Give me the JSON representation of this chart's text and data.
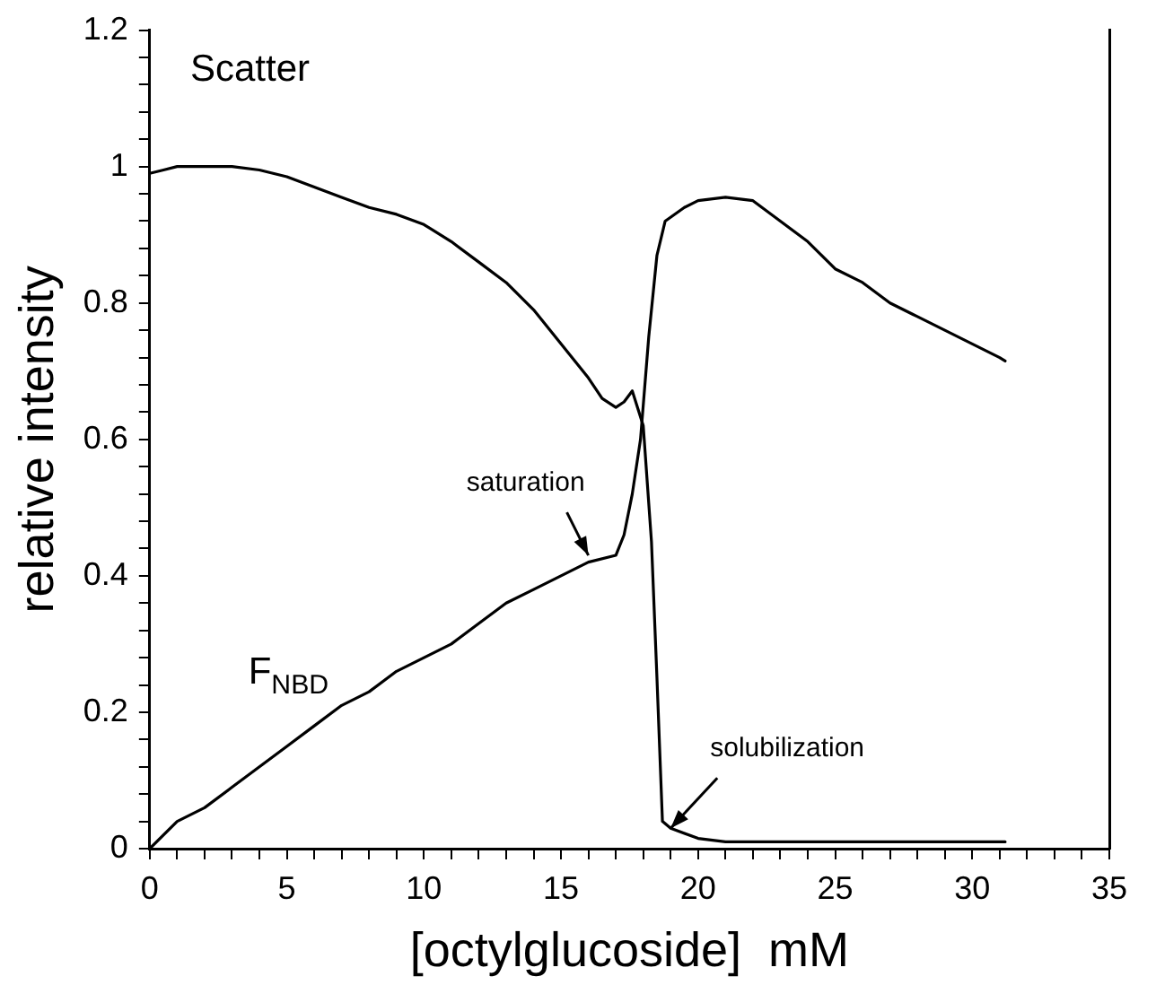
{
  "chart_data": {
    "type": "line",
    "xlabel": "[octylglucoside]  mM",
    "ylabel": "relative intensity",
    "xlim": [
      0,
      35
    ],
    "ylim": [
      0,
      1.2
    ],
    "xticks": [
      0,
      {
        "value": 1,
        "label": null
      },
      {
        "value": 2,
        "label": null
      },
      {
        "value": 3,
        "label": null
      },
      {
        "value": 4,
        "label": null
      },
      5,
      {
        "value": 6,
        "label": null
      },
      {
        "value": 7,
        "label": null
      },
      {
        "value": 8,
        "label": null
      },
      {
        "value": 9,
        "label": null
      },
      10,
      {
        "value": 11,
        "label": null
      },
      {
        "value": 12,
        "label": null
      },
      {
        "value": 13,
        "label": null
      },
      {
        "value": 14,
        "label": null
      },
      15,
      {
        "value": 16,
        "label": null
      },
      {
        "value": 17,
        "label": null
      },
      {
        "value": 18,
        "label": null
      },
      {
        "value": 19,
        "label": null
      },
      20,
      {
        "value": 21,
        "label": null
      },
      {
        "value": 22,
        "label": null
      },
      {
        "value": 23,
        "label": null
      },
      {
        "value": 24,
        "label": null
      },
      25,
      {
        "value": 26,
        "label": null
      },
      {
        "value": 27,
        "label": null
      },
      {
        "value": 28,
        "label": null
      },
      {
        "value": 29,
        "label": null
      },
      30,
      {
        "value": 31,
        "label": null
      },
      {
        "value": 32,
        "label": null
      },
      {
        "value": 33,
        "label": null
      },
      {
        "value": 34,
        "label": null
      },
      35
    ],
    "yticks": [
      0,
      {
        "value": 0.04,
        "label": null
      },
      {
        "value": 0.08,
        "label": null
      },
      {
        "value": 0.12,
        "label": null
      },
      {
        "value": 0.16,
        "label": null
      },
      0.2,
      {
        "value": 0.24,
        "label": null
      },
      {
        "value": 0.28,
        "label": null
      },
      {
        "value": 0.32,
        "label": null
      },
      {
        "value": 0.36,
        "label": null
      },
      0.4,
      {
        "value": 0.44,
        "label": null
      },
      {
        "value": 0.48,
        "label": null
      },
      {
        "value": 0.52,
        "label": null
      },
      {
        "value": 0.56,
        "label": null
      },
      0.6,
      {
        "value": 0.64,
        "label": null
      },
      {
        "value": 0.68,
        "label": null
      },
      {
        "value": 0.72,
        "label": null
      },
      {
        "value": 0.76,
        "label": null
      },
      0.8,
      {
        "value": 0.84,
        "label": null
      },
      {
        "value": 0.88,
        "label": null
      },
      {
        "value": 0.92,
        "label": null
      },
      {
        "value": 0.96,
        "label": null
      },
      1,
      {
        "value": 1.04,
        "label": null
      },
      {
        "value": 1.08,
        "label": null
      },
      {
        "value": 1.12,
        "label": null
      },
      {
        "value": 1.16,
        "label": null
      },
      1.2
    ],
    "grid": false,
    "legend": false,
    "marker": "none",
    "line_style": "solid",
    "series": [
      {
        "name": "Scatter",
        "color": "#000000",
        "x": [
          0,
          0.5,
          1,
          2,
          3,
          4,
          5,
          6,
          7,
          8,
          9,
          10,
          11,
          12,
          13,
          14,
          15,
          16,
          16.5,
          17,
          17.3,
          17.6,
          18,
          18.3,
          18.5,
          18.7,
          19,
          20,
          21,
          25,
          31.2
        ],
        "values": [
          0.99,
          0.995,
          1.0,
          1.0,
          1.0,
          0.995,
          0.985,
          0.97,
          0.955,
          0.94,
          0.93,
          0.915,
          0.89,
          0.86,
          0.83,
          0.79,
          0.74,
          0.69,
          0.66,
          0.647,
          0.655,
          0.671,
          0.62,
          0.45,
          0.25,
          0.04,
          0.03,
          0.015,
          0.01,
          0.01,
          0.01
        ]
      },
      {
        "name": "F$_{NBD}$",
        "color": "#000000",
        "x": [
          0,
          1,
          2,
          3,
          4,
          5,
          6,
          7,
          8,
          9,
          10,
          11,
          12,
          13,
          14,
          15,
          16,
          17,
          17.3,
          17.6,
          17.9,
          18.2,
          18.5,
          18.8,
          19.5,
          20,
          21,
          22,
          23,
          24,
          25,
          26,
          27,
          28,
          29,
          30,
          31,
          31.2
        ],
        "values": [
          0.0,
          0.04,
          0.06,
          0.09,
          0.12,
          0.15,
          0.18,
          0.21,
          0.23,
          0.26,
          0.28,
          0.3,
          0.33,
          0.36,
          0.38,
          0.4,
          0.42,
          0.43,
          0.46,
          0.52,
          0.6,
          0.75,
          0.87,
          0.92,
          0.94,
          0.95,
          0.955,
          0.95,
          0.92,
          0.89,
          0.85,
          0.83,
          0.8,
          0.78,
          0.76,
          0.74,
          0.72,
          0.715
        ]
      }
    ],
    "annotations": [
      {
        "text": "saturation",
        "x": 16,
        "y": 0.43
      },
      {
        "text": "solubilization",
        "x": 19,
        "y": 0.03
      }
    ]
  }
}
